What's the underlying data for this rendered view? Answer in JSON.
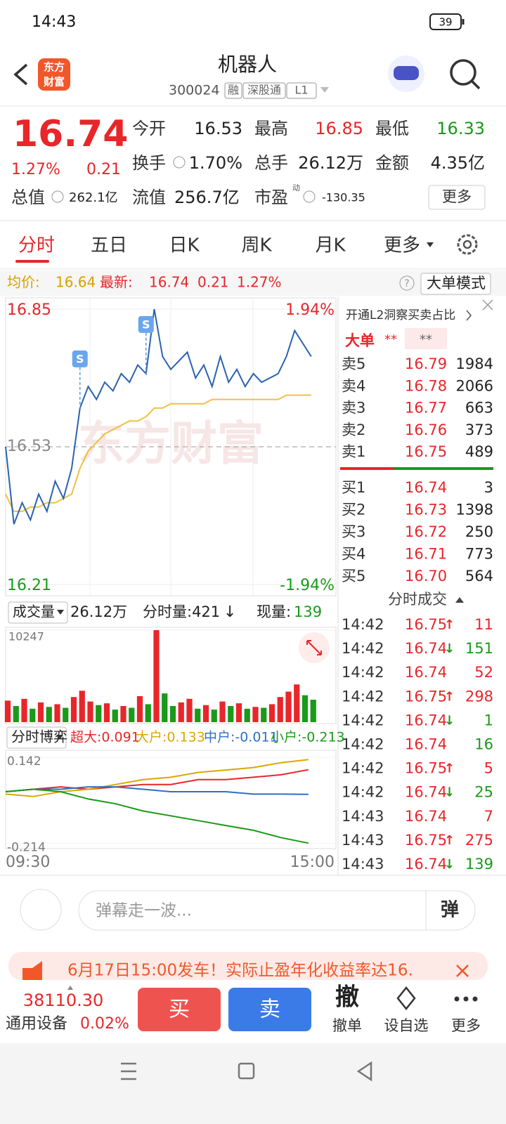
{
  "status_bar": {
    "time": "14:43",
    "battery": "39"
  },
  "header": {
    "logo": [
      "东方",
      "财富"
    ],
    "title": "机器人",
    "code": "300024",
    "tags": [
      "融",
      "深股通",
      "L1"
    ]
  },
  "quote": {
    "price": "16.74",
    "change_pct": "1.27%",
    "change": "0.21",
    "stats": [
      {
        "label": "今开",
        "value": "16.53",
        "color": "#222222"
      },
      {
        "label": "最高",
        "value": "16.85",
        "color": "#e8262a"
      },
      {
        "label": "最低",
        "value": "16.33",
        "color": "#1a9a1a"
      },
      {
        "label": "换手",
        "value": "1.70%",
        "color": "#222222"
      },
      {
        "label": "总手",
        "value": "26.12万",
        "color": "#222222"
      },
      {
        "label": "金额",
        "value": "4.35亿",
        "color": "#222222"
      }
    ],
    "total_value": {
      "label": "总值",
      "value": "262.1亿"
    },
    "float_value": {
      "label": "流值",
      "value": "256.7亿"
    },
    "pe": {
      "label": "市盈",
      "sup": "动",
      "value": "-130.35"
    },
    "more": "更多"
  },
  "tabs": [
    "分时",
    "五日",
    "日K",
    "周K",
    "月K",
    "更多"
  ],
  "info": {
    "avg_label": "均价:",
    "avg": "16.64",
    "latest_label": "最新:",
    "latest": "16.74",
    "change": "0.21",
    "change_pct": "1.27%",
    "mode": "大单模式"
  },
  "chart_data": [
    {
      "type": "line",
      "watermark": "东方财富",
      "xlim": [
        0,
        240
      ],
      "x": [
        0,
        6,
        12,
        18,
        24,
        30,
        36,
        42,
        48,
        54,
        60,
        66,
        72,
        78,
        84,
        90,
        96,
        102,
        108,
        114,
        120,
        126,
        132,
        138,
        144,
        150,
        156,
        162,
        168,
        174,
        180,
        186,
        192,
        198,
        204,
        210,
        216,
        222
      ],
      "ylim": [
        16.21,
        16.85
      ],
      "yticks": [
        16.85,
        16.53,
        16.21
      ],
      "y2lim": [
        -1.94,
        1.94
      ],
      "y2ticks": [
        {
          "value": 1.94,
          "label": "1.94%"
        },
        {
          "value": -1.94,
          "label": "-1.94%"
        }
      ],
      "series": [
        {
          "color": "#2a62b0",
          "values": [
            16.53,
            16.35,
            16.4,
            16.36,
            16.42,
            16.38,
            16.45,
            16.41,
            16.48,
            16.62,
            16.67,
            16.64,
            16.68,
            16.66,
            16.7,
            16.68,
            16.72,
            16.7,
            16.85,
            16.74,
            16.71,
            16.73,
            16.75,
            16.69,
            16.72,
            16.67,
            16.74,
            16.68,
            16.71,
            16.67,
            16.7,
            16.68,
            16.69,
            16.7,
            16.74,
            16.8,
            16.77,
            16.74
          ]
        },
        {
          "color": "#f0c040",
          "values": [
            16.42,
            16.38,
            16.38,
            16.39,
            16.39,
            16.4,
            16.4,
            16.41,
            16.42,
            16.48,
            16.52,
            16.54,
            16.56,
            16.57,
            16.58,
            16.59,
            16.59,
            16.6,
            16.62,
            16.62,
            16.63,
            16.63,
            16.63,
            16.63,
            16.63,
            16.64,
            16.64,
            16.64,
            16.64,
            16.64,
            16.64,
            16.64,
            16.64,
            16.64,
            16.65,
            16.65,
            16.65,
            16.65
          ]
        }
      ],
      "annotations": [
        {
          "text": "S",
          "x": 54,
          "y": 16.62
        },
        {
          "text": "S",
          "x": 102,
          "y": 16.7
        }
      ]
    },
    {
      "type": "bar",
      "title": "成交量",
      "total": "26.12万",
      "minute_volume": "分时量:421",
      "arrow": "↓",
      "current_label": "现量:",
      "current": "139",
      "xlim": [
        0,
        240
      ],
      "x": [
        0,
        6,
        12,
        18,
        24,
        30,
        36,
        42,
        48,
        54,
        60,
        66,
        72,
        78,
        84,
        90,
        96,
        102,
        108,
        114,
        120,
        126,
        132,
        138,
        144,
        150,
        156,
        162,
        168,
        174,
        180,
        186,
        192,
        198,
        204,
        210,
        216,
        222
      ],
      "ylim": [
        0,
        10247
      ],
      "yticks": [
        10247
      ],
      "series": [
        {
          "color": "#e8262a",
          "values": [
            2400,
            null,
            2600,
            null,
            2200,
            null,
            2000,
            null,
            2800,
            3500,
            2300,
            null,
            2100,
            null,
            1800,
            null,
            2900,
            null,
            10247,
            null,
            null,
            2200,
            2600,
            null,
            1900,
            null,
            2300,
            null,
            2100,
            null,
            1700,
            null,
            2000,
            2800,
            3400,
            4200,
            null,
            null
          ]
        },
        {
          "color": "#1a9a1a",
          "values": [
            null,
            1800,
            null,
            1500,
            null,
            1700,
            null,
            1600,
            null,
            null,
            null,
            1900,
            null,
            1400,
            null,
            1600,
            null,
            2000,
            null,
            3200,
            1800,
            null,
            null,
            1500,
            null,
            1400,
            null,
            1800,
            null,
            1500,
            null,
            1600,
            null,
            null,
            null,
            null,
            3000,
            2500
          ]
        }
      ]
    },
    {
      "type": "line",
      "title": "分时博弈",
      "xlim": [
        0,
        240
      ],
      "x": [
        0,
        20,
        40,
        60,
        80,
        100,
        120,
        140,
        160,
        180,
        200,
        220
      ],
      "xticks": [
        {
          "value": 0,
          "label": "09:30"
        },
        {
          "value": 240,
          "label": "15:00"
        }
      ],
      "ylim": [
        -0.23,
        0.16
      ],
      "yticks": [
        0.142,
        -0.214
      ],
      "series": [
        {
          "name": "超大:0.091",
          "color": "#e8262a",
          "values": [
            0,
            0.01,
            0.02,
            0.01,
            0.02,
            0.03,
            0.03,
            0.05,
            0.05,
            0.06,
            0.07,
            0.091
          ]
        },
        {
          "name": "大户:0.133",
          "color": "#d8a800",
          "values": [
            -0.01,
            -0.02,
            0,
            0.01,
            0.03,
            0.05,
            0.06,
            0.08,
            0.09,
            0.1,
            0.12,
            0.133
          ]
        },
        {
          "name": "中户:-0.011",
          "color": "#3070c0",
          "values": [
            0,
            0.01,
            0.01,
            0.02,
            0.02,
            0.01,
            0,
            0,
            0,
            -0.01,
            -0.01,
            -0.011
          ]
        },
        {
          "name": "小户:-0.213",
          "color": "#1a9a1a",
          "values": [
            0,
            0.01,
            0,
            -0.03,
            -0.05,
            -0.08,
            -0.1,
            -0.12,
            -0.14,
            -0.16,
            -0.19,
            -0.213
          ]
        }
      ]
    }
  ],
  "order_book": {
    "l2": "开通L2洞察买卖占比",
    "big": "大单",
    "stars": [
      "**",
      "**"
    ],
    "sell": [
      [
        "卖5",
        "16.79",
        "1984"
      ],
      [
        "卖4",
        "16.78",
        "2066"
      ],
      [
        "卖3",
        "16.77",
        "663"
      ],
      [
        "卖2",
        "16.76",
        "373"
      ],
      [
        "卖1",
        "16.75",
        "489"
      ]
    ],
    "buy": [
      [
        "买1",
        "16.74",
        "3"
      ],
      [
        "买2",
        "16.73",
        "1398"
      ],
      [
        "买3",
        "16.72",
        "250"
      ],
      [
        "买4",
        "16.71",
        "773"
      ],
      [
        "买5",
        "16.70",
        "564"
      ]
    ]
  },
  "trades": {
    "title": "分时成交",
    "rows": [
      {
        "time": "14:42",
        "price": "16.75",
        "arrow": "↑",
        "volume": "11",
        "color": "#e8262a"
      },
      {
        "time": "14:42",
        "price": "16.74",
        "arrow": "↓",
        "volume": "151",
        "color": "#1a9a1a"
      },
      {
        "time": "14:42",
        "price": "16.74",
        "volume": "52",
        "color": "#e8262a"
      },
      {
        "time": "14:42",
        "price": "16.75",
        "arrow": "↑",
        "volume": "298",
        "color": "#e8262a"
      },
      {
        "time": "14:42",
        "price": "16.74",
        "arrow": "↓",
        "volume": "1",
        "color": "#1a9a1a"
      },
      {
        "time": "14:42",
        "price": "16.74",
        "volume": "16",
        "color": "#1a9a1a"
      },
      {
        "time": "14:42",
        "price": "16.75",
        "arrow": "↑",
        "volume": "5",
        "color": "#e8262a"
      },
      {
        "time": "14:42",
        "price": "16.74",
        "arrow": "↓",
        "volume": "25",
        "color": "#1a9a1a"
      },
      {
        "time": "14:43",
        "price": "16.74",
        "volume": "7",
        "color": "#e8262a"
      },
      {
        "time": "14:43",
        "price": "16.75",
        "arrow": "↑",
        "volume": "275",
        "color": "#e8262a"
      },
      {
        "time": "14:43",
        "price": "16.74",
        "arrow": "↓",
        "volume": "139",
        "color": "#1a9a1a"
      }
    ]
  },
  "comment": {
    "placeholder": "弹幕走一波...",
    "button": "弹"
  },
  "banner": "6月17日15:00发车！实际止盈年化收益率达16.",
  "bottom": {
    "index": "38110.30",
    "sector": "通用设备",
    "sector_pct": "0.02%",
    "buy": "买",
    "sell": "卖",
    "cancel_icon": "撤",
    "cancel": "撤单",
    "watch": "设自选",
    "more": "更多"
  }
}
